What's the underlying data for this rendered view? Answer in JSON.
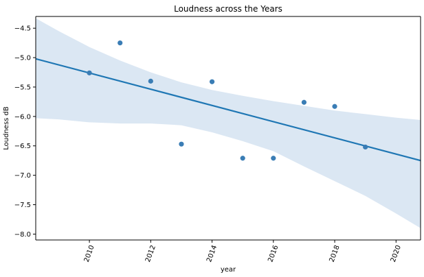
{
  "chart_data": {
    "type": "scatter",
    "title": "Loudness across the Years",
    "xlabel": "year",
    "ylabel": "Loudness dB",
    "xlim": [
      2008.25,
      2020.8
    ],
    "ylim": [
      -8.1,
      -4.3
    ],
    "x_ticks": [
      2010,
      2012,
      2014,
      2016,
      2018,
      2020
    ],
    "x_tick_labels": [
      "2010",
      "2012",
      "2014",
      "2016",
      "2018",
      "2020"
    ],
    "y_ticks": [
      -4.5,
      -5.0,
      -5.5,
      -6.0,
      -6.5,
      -7.0,
      -7.5,
      -8.0
    ],
    "y_tick_labels": [
      "−4.5",
      "−5.0",
      "−5.5",
      "−6.0",
      "−6.5",
      "−7.0",
      "−7.5",
      "−8.0"
    ],
    "grid": false,
    "series": [
      {
        "x": [
          2010,
          2011,
          2012,
          2013,
          2014,
          2015,
          2016,
          2017,
          2018,
          2019
        ],
        "y": [
          -5.26,
          -4.75,
          -5.4,
          -6.47,
          -5.41,
          -6.71,
          -6.71,
          -5.76,
          -5.83,
          -6.52
        ],
        "color": "#3a7db5"
      }
    ],
    "regression_line": {
      "x": [
        2008.25,
        2020.8
      ],
      "y": [
        -5.02,
        -6.75
      ],
      "color": "#1f77b4"
    },
    "confidence_band": {
      "x": [
        2008.25,
        2009,
        2010,
        2011,
        2012,
        2013,
        2014,
        2015,
        2016,
        2017,
        2018,
        2019,
        2020,
        2020.8
      ],
      "upper": [
        -4.33,
        -4.55,
        -4.82,
        -5.05,
        -5.25,
        -5.42,
        -5.55,
        -5.65,
        -5.74,
        -5.82,
        -5.9,
        -5.96,
        -6.02,
        -6.06
      ],
      "lower": [
        -6.03,
        -6.05,
        -6.1,
        -6.12,
        -6.12,
        -6.15,
        -6.27,
        -6.42,
        -6.59,
        -6.85,
        -7.1,
        -7.35,
        -7.65,
        -7.9
      ],
      "color": "#dbe7f3"
    }
  }
}
